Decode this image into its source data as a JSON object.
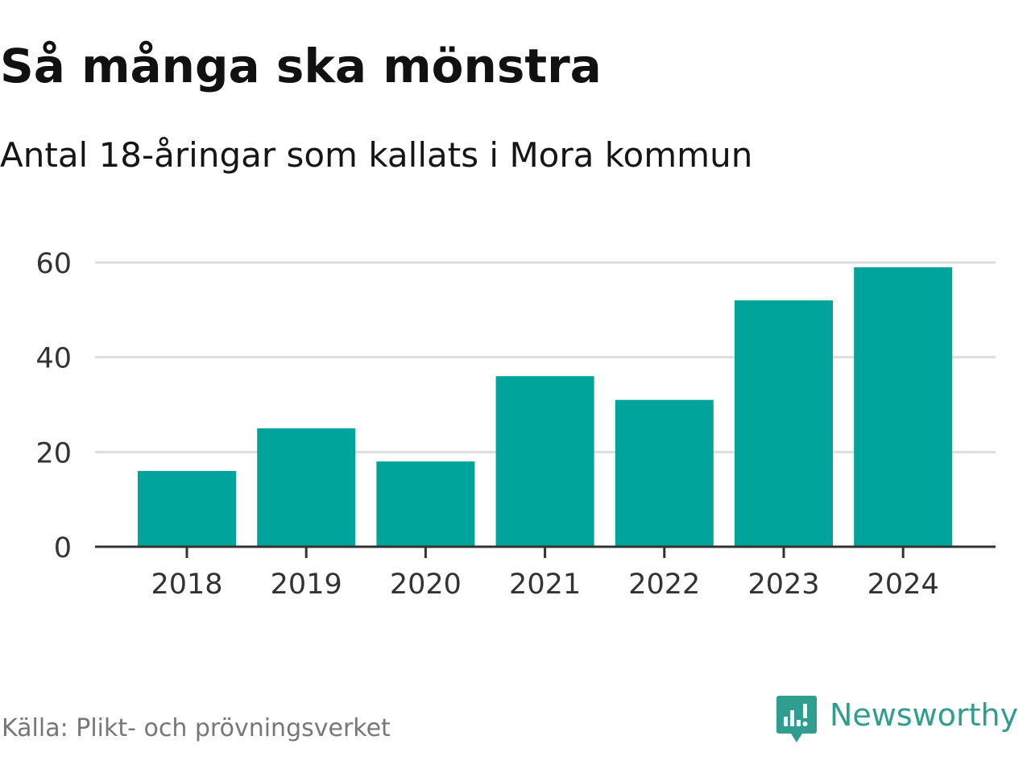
{
  "title": "Så många ska mönstra",
  "subtitle": "Antal 18-åringar som kallats i Mora kommun",
  "source": "Källa: Plikt- och prövningsverket",
  "brand": {
    "name": "Newsworthy",
    "icon": "newsworthy-logo-icon",
    "color": "#2f9e8f"
  },
  "colors": {
    "bar": "#00a49a",
    "grid": "#dddddd",
    "axis": "#333333",
    "tick_label": "#333333"
  },
  "chart_data": {
    "type": "bar",
    "categories": [
      "2018",
      "2019",
      "2020",
      "2021",
      "2022",
      "2023",
      "2024"
    ],
    "values": [
      16,
      25,
      18,
      36,
      31,
      52,
      59
    ],
    "ylim": [
      0,
      60
    ],
    "yticks": [
      0,
      20,
      40,
      60
    ],
    "grid": true,
    "legend": "none"
  }
}
